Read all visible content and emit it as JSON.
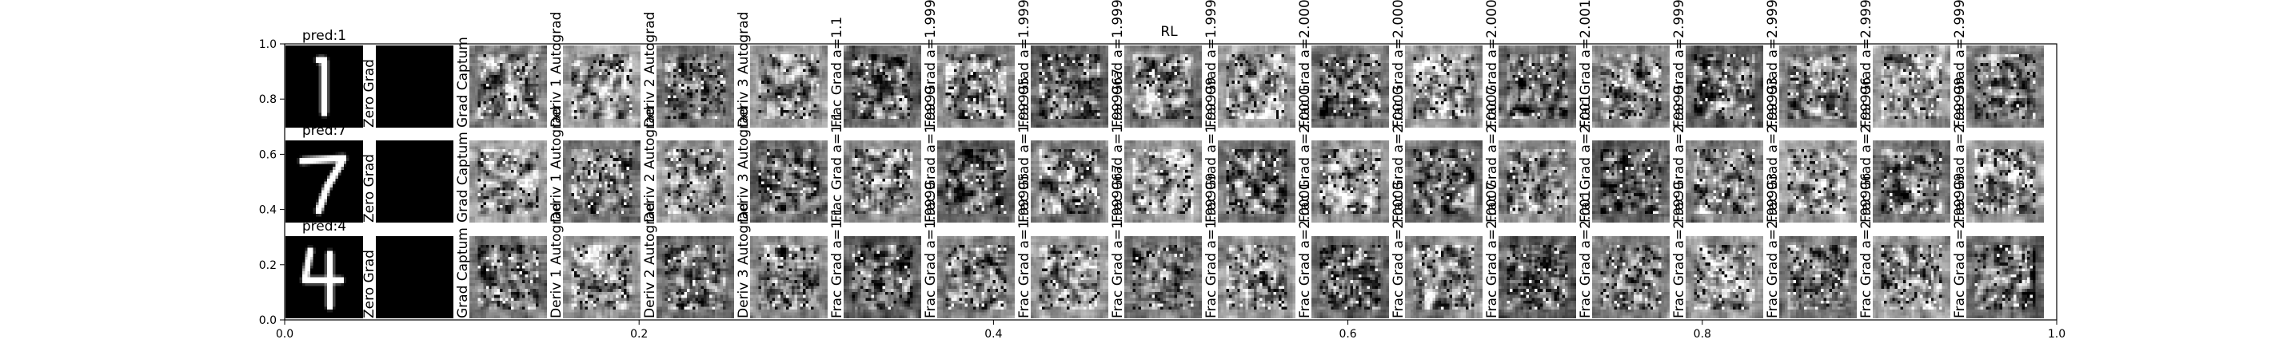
{
  "figure_title": "RL",
  "chart_data": {
    "type": "heatmap",
    "title": "",
    "xlabel": "",
    "ylabel": "",
    "xlim": [
      0.0,
      1.0
    ],
    "ylim": [
      0.0,
      1.0
    ],
    "xticks": [
      "0.0",
      "0.2",
      "0.4",
      "0.6",
      "0.8",
      "1.0"
    ],
    "yticks": [
      "0.0",
      "0.2",
      "0.4",
      "0.6",
      "0.8",
      "1.0"
    ],
    "grid": false,
    "rows": [
      {
        "prediction": "pred:1",
        "digit": "1"
      },
      {
        "prediction": "pred:7",
        "digit": "7"
      },
      {
        "prediction": "pred:4",
        "digit": "4"
      }
    ],
    "panels": [
      {
        "label": "Zero Grad",
        "kind": "zero"
      },
      {
        "label": "Grad Captum",
        "kind": "grad"
      },
      {
        "label": "Deriv 1 Autograd",
        "kind": "grad"
      },
      {
        "label": "Deriv 2 Autograd",
        "kind": "grad"
      },
      {
        "label": "Deriv 3 Autograd",
        "kind": "grad"
      },
      {
        "label": "Frac Grad a=1.1",
        "kind": "grad"
      },
      {
        "label": "Frac Grad a=1.9999",
        "kind": "grad"
      },
      {
        "label": "Frac Grad a=1.99995",
        "kind": "grad"
      },
      {
        "label": "Frac Grad a=1.999967",
        "kind": "grad"
      },
      {
        "label": "Frac Grad a=1.99999",
        "kind": "grad"
      },
      {
        "label": "Frac Grad a=2.0001",
        "kind": "grad"
      },
      {
        "label": "Frac Grad a=2.0003",
        "kind": "grad"
      },
      {
        "label": "Frac Grad a=2.0007",
        "kind": "grad"
      },
      {
        "label": "Frac Grad a=2.001",
        "kind": "grad"
      },
      {
        "label": "Frac Grad a=2.9999",
        "kind": "grad"
      },
      {
        "label": "Frac Grad a=2.99993",
        "kind": "grad"
      },
      {
        "label": "Frac Grad a=2.99996",
        "kind": "grad"
      },
      {
        "label": "Frac Grad a=2.99999",
        "kind": "grad"
      }
    ]
  }
}
